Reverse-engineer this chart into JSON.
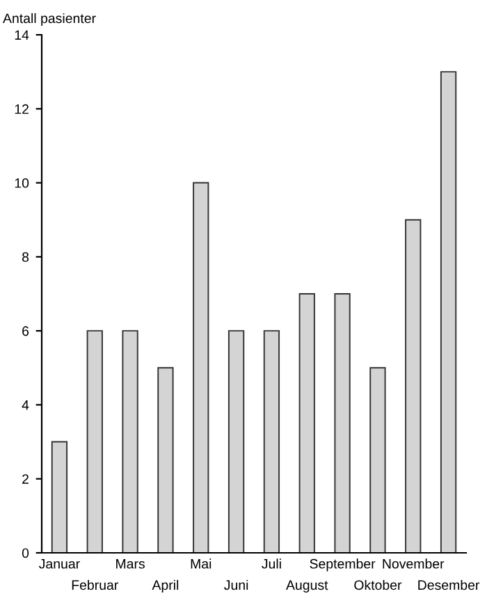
{
  "chart_data": {
    "type": "bar",
    "ylabel": "Antall pasienter",
    "categories": [
      "Januar",
      "Februar",
      "Mars",
      "April",
      "Mai",
      "Juni",
      "Juli",
      "August",
      "September",
      "Oktober",
      "November",
      "Desember"
    ],
    "values": [
      3,
      6,
      6,
      5,
      10,
      6,
      6,
      7,
      7,
      5,
      9,
      13
    ],
    "color": "#d4d4d4",
    "ylim": [
      0,
      14
    ],
    "yticks": [
      0,
      2,
      4,
      6,
      8,
      10,
      12,
      14
    ],
    "grid": false,
    "legend": false
  }
}
